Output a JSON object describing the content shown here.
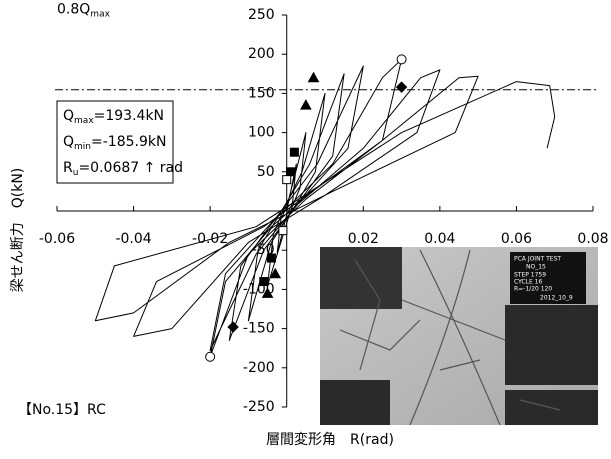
{
  "chart_data": {
    "type": "hysteresis",
    "xlabel": "層間変形角　R(rad)",
    "ylabel": "梁せん断力　Q(kN)",
    "caption": "【No.15】RC",
    "xlim": [
      -0.06,
      0.08
    ],
    "xticks": [
      -0.06,
      -0.04,
      -0.02,
      0.02,
      0.04,
      0.06,
      0.08
    ],
    "ylim": [
      -250,
      250
    ],
    "yticks": [
      250,
      200,
      150,
      100,
      50,
      -50,
      -100,
      -150,
      -200,
      -250
    ],
    "threshold": {
      "value": 154.7,
      "label": "0.8Q",
      "sub": "max"
    },
    "info": [
      {
        "main": "Q",
        "sub": "max",
        "rest": "=193.4kN"
      },
      {
        "main": "Q",
        "sub": "min",
        "rest": "=-185.9kN"
      },
      {
        "main": "R",
        "sub": "u",
        "rest": "=0.0687 ↑ rad"
      }
    ],
    "series": [
      {
        "color": "#000000",
        "marker": "line",
        "x": [
          0,
          0.0025,
          0.0015,
          0,
          -0.0025,
          -0.0015,
          0,
          0.005,
          0.0035,
          0.001,
          -0.005,
          -0.0035,
          -0.001,
          0.004,
          0.01,
          0.0075,
          0.002,
          -0.004,
          -0.01,
          -0.0075,
          -0.002,
          0.006,
          0.015,
          0.012,
          0.003,
          -0.006,
          -0.015,
          -0.012,
          -0.003,
          0.008,
          0.02,
          0.016,
          0.004,
          -0.008,
          -0.02,
          -0.016,
          -0.004,
          0.012,
          0.025,
          0.03,
          0.025,
          0.005,
          -0.01,
          -0.02,
          -0.016,
          -0.004,
          0.02,
          0.035,
          0.04,
          0.034,
          0.01,
          -0.01,
          -0.03,
          -0.04,
          -0.034,
          -0.006,
          0.025,
          0.045,
          0.05,
          0.044,
          0.012,
          -0.015,
          -0.04,
          -0.05,
          -0.045,
          -0.008,
          0.03,
          0.06,
          0.0687,
          0.07,
          0.068
        ],
        "y": [
          0,
          60,
          10,
          -5,
          -55,
          -10,
          5,
          100,
          30,
          0,
          -95,
          -30,
          0,
          50,
          150,
          50,
          5,
          -40,
          -140,
          -50,
          -5,
          60,
          175,
          70,
          10,
          -50,
          -165,
          -70,
          -10,
          60,
          185,
          80,
          15,
          -55,
          -178,
          -80,
          -15,
          60,
          170,
          193.4,
          90,
          15,
          -55,
          -185.9,
          -90,
          -20,
          80,
          170,
          180,
          100,
          20,
          -40,
          -150,
          -160,
          -90,
          -20,
          90,
          170,
          172,
          100,
          25,
          -40,
          -130,
          -140,
          -70,
          -20,
          100,
          165,
          160,
          120,
          80
        ]
      },
      {
        "color": "#000000",
        "marker": "circle",
        "fill": "#ffffff",
        "x": [
          0.03,
          -0.02
        ],
        "y": [
          193.4,
          -185.9
        ]
      },
      {
        "color": "#000000",
        "marker": "diamond",
        "fill": "#000000",
        "x": [
          0.03,
          -0.014
        ],
        "y": [
          158,
          -148
        ]
      },
      {
        "color": "#000000",
        "marker": "triangle",
        "fill": "#000000",
        "x": [
          0.007,
          0.005,
          -0.005,
          -0.003
        ],
        "y": [
          170,
          135,
          -105,
          -80
        ]
      },
      {
        "color": "#000000",
        "marker": "square",
        "fill": "#000000",
        "x": [
          0.002,
          0.001,
          -0.004,
          -0.006
        ],
        "y": [
          75,
          50,
          -60,
          -90
        ]
      },
      {
        "color": "#000000",
        "marker": "square",
        "fill": "#ffffff",
        "x": [
          0,
          -0.001
        ],
        "y": [
          40,
          -25
        ]
      }
    ]
  },
  "photo": {
    "sign": [
      "PCA JOINT TEST",
      "NO_15",
      "STEP 1759",
      "CYCLE 16",
      "R=-1/20 120",
      "2012_10_9"
    ]
  }
}
